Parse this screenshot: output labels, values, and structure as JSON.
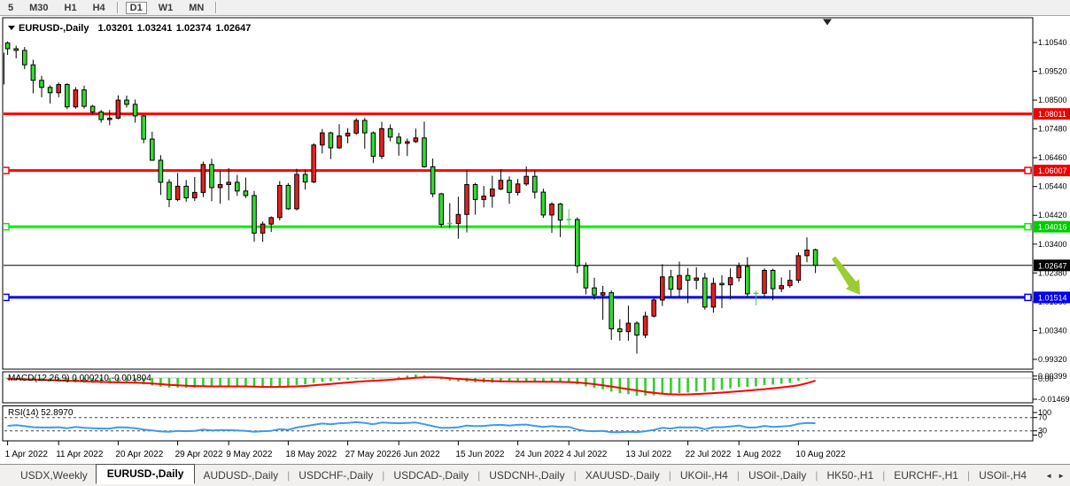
{
  "toolbar": {
    "timeframes": [
      "5",
      "M30",
      "H1",
      "H4",
      "D1",
      "W1",
      "MN"
    ],
    "active": "D1",
    "separators_after": [
      "H4",
      "MN"
    ]
  },
  "chart": {
    "title": {
      "dropdown_icon": "▼",
      "symbol": "EURUSD-,Daily",
      "open": "1.03201",
      "high": "1.03241",
      "low": "1.02374",
      "close": "1.02647"
    }
  },
  "price_axis": {
    "labels": [
      "1.10540",
      "1.09520",
      "1.08500",
      "1.07480",
      "1.06460",
      "1.05440",
      "1.04420",
      "1.03400",
      "1.02380",
      "1.01360",
      "1.00340",
      "0.99320"
    ],
    "badges": [
      {
        "value": "1.08011",
        "bg": "#ee0000"
      },
      {
        "value": "1.06007",
        "bg": "#ee0000"
      },
      {
        "value": "1.04016",
        "bg": "#00cc00"
      },
      {
        "value": "1.02647",
        "bg": "#000000"
      },
      {
        "value": "1.01514",
        "bg": "#0000ee"
      }
    ]
  },
  "chart_data": {
    "type": "candlestick",
    "symbol": "EURUSD",
    "timeframe": "Daily",
    "ohlc_current": {
      "open": 1.03201,
      "high": 1.03241,
      "low": 1.02374,
      "close": 1.02647
    },
    "up_color": "#e62020",
    "down_color": "#33db33",
    "wick_color": "#000000",
    "doji_green_wicks": [
      66,
      88
    ],
    "price_ticks": [
      1.1054,
      1.0952,
      1.085,
      1.0748,
      1.0646,
      1.0544,
      1.0442,
      1.034,
      1.0238,
      1.0136,
      1.0034,
      0.9932
    ],
    "candles": [
      [
        1.1052,
        1.1058,
        1.101,
        1.1032
      ],
      [
        1.1032,
        1.1043,
        1.0998,
        1.1026
      ],
      [
        1.1026,
        1.1038,
        1.096,
        1.0975
      ],
      [
        1.0975,
        1.0993,
        1.0874,
        1.092
      ],
      [
        1.092,
        1.0936,
        1.086,
        1.0895
      ],
      [
        1.0895,
        1.0902,
        1.0838,
        1.0876
      ],
      [
        1.0876,
        1.0912,
        1.086,
        1.0905
      ],
      [
        1.0905,
        1.091,
        1.0818,
        1.0826
      ],
      [
        1.0826,
        1.0896,
        1.082,
        1.0886
      ],
      [
        1.0886,
        1.0901,
        1.082,
        1.0828
      ],
      [
        1.0828,
        1.0833,
        1.0798,
        1.0808
      ],
      [
        1.0808,
        1.0815,
        1.077,
        1.0781
      ],
      [
        1.0781,
        1.0815,
        1.0761,
        1.0786
      ],
      [
        1.0786,
        1.0867,
        1.0782,
        1.085
      ],
      [
        1.085,
        1.0866,
        1.0824,
        1.0835
      ],
      [
        1.0835,
        1.0852,
        1.077,
        1.0794
      ],
      [
        1.0794,
        1.0797,
        1.0697,
        1.0712
      ],
      [
        1.0712,
        1.0738,
        1.0635,
        1.0637
      ],
      [
        1.0637,
        1.0655,
        1.0514,
        1.0559
      ],
      [
        1.0559,
        1.057,
        1.0471,
        1.0498
      ],
      [
        1.0498,
        1.0592,
        1.0492,
        1.0545
      ],
      [
        1.0545,
        1.0567,
        1.049,
        1.0504
      ],
      [
        1.0504,
        1.0578,
        1.0493,
        1.0523
      ],
      [
        1.0523,
        1.0632,
        1.0506,
        1.0622
      ],
      [
        1.0622,
        1.0642,
        1.0492,
        1.054
      ],
      [
        1.054,
        1.0599,
        1.0483,
        1.0551
      ],
      [
        1.0551,
        1.0609,
        1.0495,
        1.0559
      ],
      [
        1.0559,
        1.0585,
        1.0511,
        1.0528
      ],
      [
        1.0528,
        1.0576,
        1.0503,
        1.0512
      ],
      [
        1.0512,
        1.0528,
        1.0349,
        1.0379
      ],
      [
        1.0379,
        1.042,
        1.0348,
        1.0411
      ],
      [
        1.0411,
        1.0438,
        1.0383,
        1.0434
      ],
      [
        1.0434,
        1.0563,
        1.0424,
        1.0548
      ],
      [
        1.0548,
        1.0556,
        1.0461,
        1.0465
      ],
      [
        1.0465,
        1.0607,
        1.0459,
        1.0587
      ],
      [
        1.0587,
        1.0604,
        1.0533,
        1.056
      ],
      [
        1.056,
        1.0697,
        1.0556,
        1.0691
      ],
      [
        1.0691,
        1.0748,
        1.0661,
        1.0734
      ],
      [
        1.0734,
        1.0738,
        1.0641,
        1.0681
      ],
      [
        1.0681,
        1.0765,
        1.0677,
        1.0723
      ],
      [
        1.0723,
        1.0751,
        1.0697,
        1.0733
      ],
      [
        1.0733,
        1.0786,
        1.0727,
        1.0778
      ],
      [
        1.0778,
        1.0787,
        1.0678,
        1.0734
      ],
      [
        1.0734,
        1.0739,
        1.0627,
        1.0651
      ],
      [
        1.0651,
        1.0773,
        1.0641,
        1.0749
      ],
      [
        1.0749,
        1.0764,
        1.0704,
        1.0719
      ],
      [
        1.0719,
        1.0734,
        1.0653,
        1.0697
      ],
      [
        1.0697,
        1.0714,
        1.0652,
        1.0703
      ],
      [
        1.0703,
        1.0749,
        1.0698,
        1.0716
      ],
      [
        1.0716,
        1.0774,
        1.0611,
        1.0614
      ],
      [
        1.0614,
        1.0643,
        1.0506,
        1.0518
      ],
      [
        1.0518,
        1.0522,
        1.0399,
        1.041
      ],
      [
        1.041,
        1.0485,
        1.0397,
        1.0413
      ],
      [
        1.0413,
        1.0508,
        1.0359,
        1.0445
      ],
      [
        1.0445,
        1.0601,
        1.0381,
        1.0551
      ],
      [
        1.0551,
        1.0557,
        1.0444,
        1.0498
      ],
      [
        1.0498,
        1.0546,
        1.047,
        1.051
      ],
      [
        1.051,
        1.0582,
        1.0469,
        1.0535
      ],
      [
        1.0535,
        1.0606,
        1.0531,
        1.0566
      ],
      [
        1.0566,
        1.058,
        1.0483,
        1.0523
      ],
      [
        1.0523,
        1.0571,
        1.0512,
        1.0553
      ],
      [
        1.0553,
        1.0615,
        1.0546,
        1.058
      ],
      [
        1.058,
        1.0601,
        1.0501,
        1.0524
      ],
      [
        1.0524,
        1.0536,
        1.0433,
        1.0443
      ],
      [
        1.0443,
        1.0488,
        1.038,
        1.0482
      ],
      [
        1.0482,
        1.0486,
        1.0365,
        1.0425
      ],
      [
        1.0425,
        1.0463,
        1.0404,
        1.0427
      ],
      [
        1.0427,
        1.0435,
        1.0237,
        1.0263
      ],
      [
        1.0263,
        1.0275,
        1.0162,
        1.0185
      ],
      [
        1.0185,
        1.0221,
        1.0143,
        1.016
      ],
      [
        1.016,
        1.0192,
        1.0072,
        1.0168
      ],
      [
        1.0168,
        1.0176,
        1.0001,
        1.004
      ],
      [
        1.004,
        1.0074,
        0.9998,
        1.003
      ],
      [
        1.003,
        1.0122,
        0.9998,
        1.006
      ],
      [
        1.006,
        1.0067,
        0.9952,
        1.0018
      ],
      [
        1.0018,
        1.0101,
        1.0007,
        1.0085
      ],
      [
        1.0085,
        1.0151,
        1.008,
        1.0142
      ],
      [
        1.0142,
        1.0269,
        1.0121,
        1.0224
      ],
      [
        1.0224,
        1.0249,
        1.0155,
        1.018
      ],
      [
        1.018,
        1.0278,
        1.0152,
        1.0229
      ],
      [
        1.0229,
        1.0255,
        1.0131,
        1.0212
      ],
      [
        1.0212,
        1.0258,
        1.018,
        1.022
      ],
      [
        1.022,
        1.0238,
        1.0108,
        1.0117
      ],
      [
        1.0117,
        1.0221,
        1.0097,
        1.0201
      ],
      [
        1.0201,
        1.023,
        1.0113,
        1.0196
      ],
      [
        1.0196,
        1.0254,
        1.0144,
        1.0221
      ],
      [
        1.0221,
        1.0275,
        1.0207,
        1.0261
      ],
      [
        1.0261,
        1.0294,
        1.0155,
        1.0164
      ],
      [
        1.0164,
        1.0175,
        1.0123,
        1.0166
      ],
      [
        1.0166,
        1.0254,
        1.0152,
        1.0247
      ],
      [
        1.0247,
        1.0253,
        1.0141,
        1.0182
      ],
      [
        1.0182,
        1.0222,
        1.017,
        1.0193
      ],
      [
        1.0193,
        1.0248,
        1.0186,
        1.0212
      ],
      [
        1.0212,
        1.031,
        1.0202,
        1.0299
      ],
      [
        1.0299,
        1.0364,
        1.0276,
        1.0319
      ],
      [
        1.03201,
        1.03241,
        1.02374,
        1.02647
      ]
    ],
    "edge_sliver": {
      "top": 1.1016,
      "bottom": 1.0907
    },
    "date_ticks": {
      "indices": [
        0,
        6,
        13,
        20,
        26,
        33,
        40,
        46,
        53,
        60,
        66,
        73,
        80,
        86,
        93
      ],
      "labels": [
        "1 Apr 2022",
        "11 Apr 2022",
        "20 Apr 2022",
        "29 Apr 2022",
        "9 May 2022",
        "18 May 2022",
        "27 May 2022",
        "6 Jun 2022",
        "15 Jun 2022",
        "24 Jun 2022",
        "4 Jul 2022",
        "13 Jul 2022",
        "22 Jul 2022",
        "1 Aug 2022",
        "10 Aug 2022"
      ]
    },
    "hlines": [
      {
        "price": 1.08011,
        "color": "#ff0000",
        "handles": "none"
      },
      {
        "price": 1.06007,
        "color": "#ff0000",
        "handles": "both"
      },
      {
        "price": 1.04016,
        "color": "#00ee00",
        "handles": "both"
      },
      {
        "price": 1.01514,
        "color": "#0000ee",
        "handles": "both"
      }
    ],
    "price_line": {
      "price": 1.02647,
      "color": "#000000"
    },
    "arrow": {
      "from": [
        941,
        291
      ],
      "to": [
        971,
        333
      ],
      "color": "#9acd32"
    },
    "indicators": [
      {
        "name": "MACD",
        "label": "MACD(12,26,9) 0.000210 -0.001804",
        "axis_labels": [
          "0.00399",
          "0.00",
          "-0.014693"
        ],
        "hist_color": "#2fcf2f",
        "signal_color": "#ff0000",
        "histogram": [
          -0.0008,
          -0.001,
          -0.0014,
          -0.0018,
          -0.0022,
          -0.0024,
          -0.0026,
          -0.0028,
          -0.003,
          -0.0032,
          -0.0034,
          -0.0036,
          -0.0037,
          -0.0036,
          -0.0036,
          -0.0038,
          -0.0044,
          -0.0052,
          -0.006,
          -0.0066,
          -0.0066,
          -0.0067,
          -0.0066,
          -0.0062,
          -0.0062,
          -0.006,
          -0.0058,
          -0.0057,
          -0.0058,
          -0.0066,
          -0.0066,
          -0.0064,
          -0.0058,
          -0.0056,
          -0.0048,
          -0.0044,
          -0.0034,
          -0.0026,
          -0.0022,
          -0.0016,
          -0.0012,
          -0.0006,
          -0.0004,
          -0.0008,
          -0.0002,
          0.0002,
          0.0008,
          0.0016,
          0.0024,
          0.0018,
          0.0006,
          -0.0008,
          -0.0018,
          -0.0024,
          -0.0026,
          -0.003,
          -0.0032,
          -0.0032,
          -0.003,
          -0.003,
          -0.0028,
          -0.0026,
          -0.0026,
          -0.003,
          -0.0028,
          -0.003,
          -0.003,
          -0.0044,
          -0.0058,
          -0.007,
          -0.0078,
          -0.0094,
          -0.0106,
          -0.0112,
          -0.0122,
          -0.0122,
          -0.012,
          -0.0112,
          -0.011,
          -0.0104,
          -0.01,
          -0.0094,
          -0.0094,
          -0.0086,
          -0.008,
          -0.0072,
          -0.0062,
          -0.0062,
          -0.0058,
          -0.0048,
          -0.0046,
          -0.004,
          -0.0034,
          -0.002,
          -0.0006,
          0.0002
        ],
        "signal": [
          -0.0008,
          -0.0008,
          -0.001,
          -0.0011,
          -0.0013,
          -0.0015,
          -0.0017,
          -0.0019,
          -0.0021,
          -0.0023,
          -0.0025,
          -0.0027,
          -0.0029,
          -0.003,
          -0.0031,
          -0.0032,
          -0.0034,
          -0.0038,
          -0.0042,
          -0.0047,
          -0.0051,
          -0.0054,
          -0.0056,
          -0.0057,
          -0.0058,
          -0.0058,
          -0.0058,
          -0.0058,
          -0.0058,
          -0.006,
          -0.0061,
          -0.0062,
          -0.0061,
          -0.006,
          -0.0058,
          -0.0055,
          -0.0051,
          -0.0046,
          -0.0041,
          -0.0036,
          -0.0031,
          -0.0026,
          -0.0022,
          -0.0019,
          -0.0016,
          -0.0012,
          -0.0008,
          -0.0003,
          0.0002,
          0.0005,
          0.0005,
          0.0003,
          -0.0001,
          -0.0006,
          -0.001,
          -0.0014,
          -0.0018,
          -0.0021,
          -0.0023,
          -0.0024,
          -0.0025,
          -0.0025,
          -0.0025,
          -0.0026,
          -0.0026,
          -0.0027,
          -0.0028,
          -0.0031,
          -0.0036,
          -0.0043,
          -0.005,
          -0.0059,
          -0.0068,
          -0.0077,
          -0.0086,
          -0.0095,
          -0.0103,
          -0.0109,
          -0.0113,
          -0.0114,
          -0.0113,
          -0.0111,
          -0.0108,
          -0.0105,
          -0.0101,
          -0.0097,
          -0.0092,
          -0.0087,
          -0.0082,
          -0.0077,
          -0.0071,
          -0.0065,
          -0.0058,
          -0.005,
          -0.0036,
          -0.0018
        ]
      },
      {
        "name": "RSI",
        "label": "RSI(14) 52.8970",
        "axis_labels": [
          "100",
          "70",
          "30",
          "0"
        ],
        "levels": [
          70,
          30
        ],
        "color": "#3e9bea",
        "values": [
          45,
          47,
          44,
          41,
          40,
          40,
          41,
          38,
          42,
          39,
          38,
          37,
          37,
          41,
          40,
          38,
          34,
          31,
          28,
          27,
          30,
          29,
          30,
          34,
          31,
          32,
          32,
          31,
          30,
          27,
          29,
          30,
          35,
          33,
          40,
          44,
          48,
          52,
          50,
          53,
          54,
          56,
          54,
          50,
          55,
          54,
          53,
          54,
          55,
          50,
          44,
          39,
          39,
          41,
          46,
          44,
          45,
          47,
          48,
          46,
          48,
          49,
          45,
          42,
          44,
          42,
          42,
          34,
          30,
          29,
          30,
          26,
          26,
          27,
          26,
          29,
          33,
          39,
          37,
          41,
          40,
          41,
          35,
          41,
          41,
          43,
          46,
          40,
          40,
          45,
          42,
          43,
          45,
          51,
          54,
          52.9
        ]
      }
    ]
  },
  "tabs": {
    "items": [
      "USDX,Weekly",
      "EURUSD-,Daily",
      "AUDUSD-,Daily",
      "USDCHF-,Daily",
      "USDCAD-,Daily",
      "USDCNH-,Daily",
      "XAUUSD-,Daily",
      "UKOil-,H4",
      "USOil-,Daily",
      "HK50-,H1",
      "EURCHF-,H1",
      "USOil-,H4"
    ],
    "active_index": 1,
    "scroll_left_icon": "◄",
    "scroll_right_icon": "►"
  }
}
